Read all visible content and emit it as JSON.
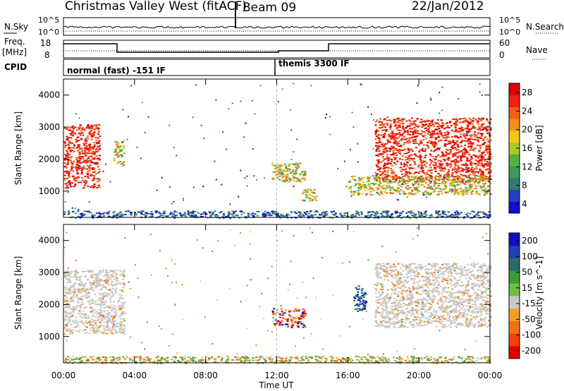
{
  "header": {
    "site": "Christmas Valley West (fitACF)",
    "beam": "Beam 09",
    "date": "22/Jan/2012"
  },
  "panels": {
    "noise": {
      "left_label": "N.Sky",
      "right_label": "N.Search",
      "left_ticks": [
        "10^5",
        "10^0"
      ],
      "right_ticks": [
        "10^5",
        "10^0"
      ]
    },
    "freq": {
      "left_label_top": "Freq.",
      "left_label_bottom": "[MHz]",
      "right_label": "Nave",
      "left_ticks": [
        "18",
        "8"
      ],
      "right_ticks": [
        "60",
        "0"
      ]
    },
    "cpid": {
      "label": "CPID",
      "modes": [
        "normal (fast) -151 IF",
        "themis 3300 IF"
      ]
    }
  },
  "colors": {
    "power": [
      "#1010d0",
      "#2040c0",
      "#2e7d6e",
      "#3c9a5a",
      "#58b040",
      "#a8c828",
      "#f0c818",
      "#f09018",
      "#f06018",
      "#f02010",
      "#e00000"
    ],
    "velocity": [
      "#1010c0",
      "#2040b0",
      "#2a6a6a",
      "#3c9a3c",
      "#70c040",
      "#c8c8c8",
      "#f0a020",
      "#f07018",
      "#f04010",
      "#e00000"
    ]
  },
  "chart_data": [
    {
      "type": "heatmap",
      "title": "",
      "xlabel": "Time UT",
      "ylabel": "Slant Range [km]",
      "x_ticks": [
        "00:00",
        "04:00",
        "08:00",
        "12:00",
        "16:00",
        "20:00",
        "00:00"
      ],
      "y_ticks": [
        "1000",
        "2000",
        "3000",
        "4000"
      ],
      "xlim": [
        "00:00",
        "24:00"
      ],
      "ylim": [
        180,
        4500
      ],
      "colorbar_label": "Power [dB]",
      "colorbar_ticks": [
        "4",
        "8",
        "12",
        "16",
        "20",
        "24",
        "28"
      ],
      "regions": [
        {
          "t": [
            0.0,
            2.0
          ],
          "r": [
            1100,
            3100
          ],
          "level": "high"
        },
        {
          "t": [
            2.8,
            3.4
          ],
          "r": [
            1800,
            2600
          ],
          "level": "mid"
        },
        {
          "t": [
            11.7,
            13.6
          ],
          "r": [
            1300,
            1900
          ],
          "level": "mid"
        },
        {
          "t": [
            13.4,
            14.2
          ],
          "r": [
            700,
            1100
          ],
          "level": "mid"
        },
        {
          "t": [
            17.5,
            24.0
          ],
          "r": [
            1300,
            3300
          ],
          "level": "high"
        },
        {
          "t": [
            16.0,
            24.0
          ],
          "r": [
            900,
            1500
          ],
          "level": "mid"
        },
        {
          "t": [
            0.0,
            24.0
          ],
          "r": [
            180,
            400
          ],
          "level": "low"
        }
      ]
    },
    {
      "type": "heatmap",
      "title": "",
      "xlabel": "Time UT",
      "ylabel": "Slant Range [km]",
      "x_ticks": [
        "00:00",
        "04:00",
        "08:00",
        "12:00",
        "16:00",
        "20:00",
        "00:00"
      ],
      "y_ticks": [
        "1000",
        "2000",
        "3000",
        "4000"
      ],
      "xlim": [
        "00:00",
        "24:00"
      ],
      "ylim": [
        180,
        4500
      ],
      "colorbar_label": "Velocity [m s^-1]",
      "colorbar_ticks": [
        "200",
        "100",
        "50",
        "15",
        "-15",
        "-50",
        "-100",
        "-200"
      ],
      "regions": [
        {
          "t": [
            0.0,
            3.4
          ],
          "r": [
            1100,
            3100
          ],
          "level": "ground"
        },
        {
          "t": [
            11.7,
            13.6
          ],
          "r": [
            1300,
            1900
          ],
          "level": "mixed"
        },
        {
          "t": [
            16.3,
            17.0
          ],
          "r": [
            1800,
            2600
          ],
          "level": "positive"
        },
        {
          "t": [
            17.5,
            24.0
          ],
          "r": [
            1300,
            3300
          ],
          "level": "ground"
        },
        {
          "t": [
            0.0,
            24.0
          ],
          "r": [
            180,
            400
          ],
          "level": "low"
        }
      ]
    }
  ]
}
